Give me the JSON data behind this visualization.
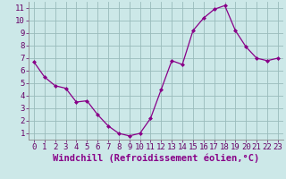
{
  "x": [
    0,
    1,
    2,
    3,
    4,
    5,
    6,
    7,
    8,
    9,
    10,
    11,
    12,
    13,
    14,
    15,
    16,
    17,
    18,
    19,
    20,
    21,
    22,
    23
  ],
  "y": [
    6.7,
    5.5,
    4.8,
    4.6,
    3.5,
    3.6,
    2.5,
    1.6,
    1.0,
    0.8,
    1.0,
    2.2,
    4.5,
    6.8,
    6.5,
    9.2,
    10.2,
    10.9,
    11.2,
    9.2,
    7.9,
    7.0,
    6.8,
    7.0
  ],
  "line_color": "#880088",
  "marker": "D",
  "marker_size": 2.0,
  "bg_color": "#cce8e8",
  "grid_color": "#99bbbb",
  "xlabel": "Windchill (Refroidissement éolien,°C)",
  "xlim": [
    -0.5,
    23.5
  ],
  "ylim": [
    0.5,
    11.5
  ],
  "xticks": [
    0,
    1,
    2,
    3,
    4,
    5,
    6,
    7,
    8,
    9,
    10,
    11,
    12,
    13,
    14,
    15,
    16,
    17,
    18,
    19,
    20,
    21,
    22,
    23
  ],
  "yticks": [
    1,
    2,
    3,
    4,
    5,
    6,
    7,
    8,
    9,
    10,
    11
  ],
  "tick_fontsize": 6.5,
  "xlabel_fontsize": 7.5
}
